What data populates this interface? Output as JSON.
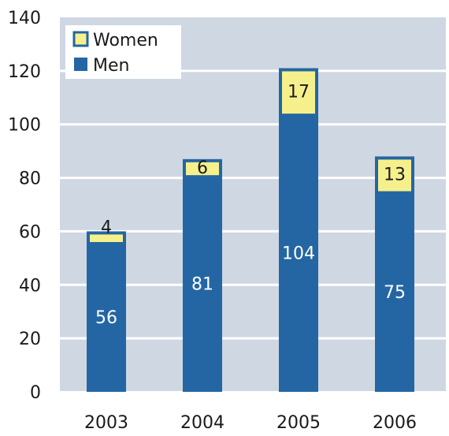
{
  "chart_data": {
    "type": "bar",
    "stacked": true,
    "categories": [
      "2003",
      "2004",
      "2005",
      "2006"
    ],
    "series": [
      {
        "name": "Men",
        "values": [
          56,
          81,
          104,
          75
        ],
        "color": "#2466a3"
      },
      {
        "name": "Women",
        "values": [
          4,
          6,
          17,
          13
        ],
        "color": "#f6f08c"
      }
    ],
    "ylim": [
      0,
      140
    ],
    "yticks": [
      "0",
      "20",
      "40",
      "60",
      "80",
      "100",
      "120",
      "140"
    ],
    "grid": true,
    "legend": {
      "position": "top-left",
      "entries": [
        "Women",
        "Men"
      ]
    },
    "colors": {
      "plot_background": "#cfd7e3",
      "grid": "#ffffff",
      "bar_outline": "#2466a3"
    }
  }
}
